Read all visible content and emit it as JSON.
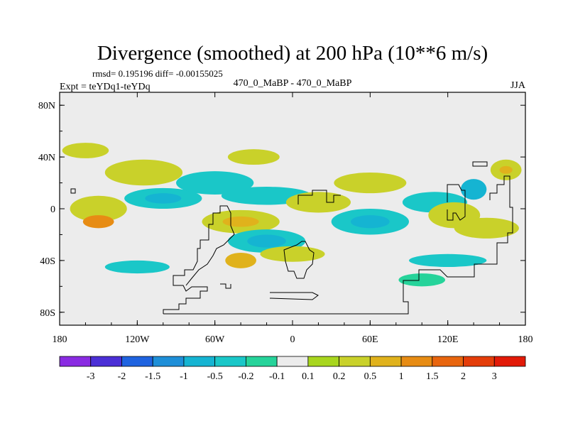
{
  "chart_data": {
    "type": "heatmap",
    "title": "Divergence (smoothed) at 200 hPa (10**6 m/s)",
    "stats": "rmsd= 0.195196 diff= -0.00155025",
    "experiment": "Expt = teYDq1-teYDq",
    "case_label": "470_0_MaBP - 470_0_MaBP",
    "season": "JJA",
    "x_ticks": [
      "180",
      "120W",
      "60W",
      "0",
      "60E",
      "120E",
      "180"
    ],
    "x_values": [
      -180,
      -120,
      -60,
      0,
      60,
      120,
      180
    ],
    "y_ticks": [
      "80N",
      "40N",
      "0",
      "40S",
      "80S"
    ],
    "y_values": [
      80,
      40,
      0,
      -40,
      -80
    ],
    "xlim": [
      -180,
      180
    ],
    "ylim": [
      -90,
      90
    ],
    "colorbar": {
      "labels": [
        "-3",
        "-2",
        "-1.5",
        "-1",
        "-0.5",
        "-0.2",
        "-0.1",
        "0.1",
        "0.2",
        "0.5",
        "1",
        "1.5",
        "2",
        "3"
      ],
      "colors": [
        "#8a2be2",
        "#4b2fd6",
        "#1f63e0",
        "#1e8fd8",
        "#15b4d2",
        "#1ac7c8",
        "#26d39a",
        "#ececec",
        "#a8d61e",
        "#c9d12a",
        "#e0b21c",
        "#e78c14",
        "#e8650e",
        "#e43d0a",
        "#e21a08"
      ]
    },
    "blobs": [
      {
        "lon": -150,
        "lat": 0,
        "rx": 22,
        "ry": 10,
        "level": "0.2"
      },
      {
        "lon": -150,
        "lat": -10,
        "rx": 12,
        "ry": 5,
        "level": "1"
      },
      {
        "lon": -100,
        "lat": 8,
        "rx": 30,
        "ry": 8,
        "level": "-0.2"
      },
      {
        "lon": -100,
        "lat": 8,
        "rx": 14,
        "ry": 4,
        "level": "-0.5"
      },
      {
        "lon": -115,
        "lat": 28,
        "rx": 30,
        "ry": 10,
        "level": "0.2"
      },
      {
        "lon": -60,
        "lat": 20,
        "rx": 30,
        "ry": 9,
        "level": "-0.2"
      },
      {
        "lon": -20,
        "lat": 10,
        "rx": 35,
        "ry": 7,
        "level": "-0.2"
      },
      {
        "lon": -40,
        "lat": -10,
        "rx": 30,
        "ry": 9,
        "level": "0.2"
      },
      {
        "lon": -40,
        "lat": -10,
        "rx": 14,
        "ry": 4,
        "level": "0.5"
      },
      {
        "lon": -20,
        "lat": -25,
        "rx": 30,
        "ry": 9,
        "level": "-0.2"
      },
      {
        "lon": -20,
        "lat": -25,
        "rx": 15,
        "ry": 5,
        "level": "-0.5"
      },
      {
        "lon": -40,
        "lat": -40,
        "rx": 12,
        "ry": 6,
        "level": "0.5"
      },
      {
        "lon": 20,
        "lat": 5,
        "rx": 25,
        "ry": 8,
        "level": "0.2"
      },
      {
        "lon": 60,
        "lat": -10,
        "rx": 30,
        "ry": 10,
        "level": "-0.2"
      },
      {
        "lon": 60,
        "lat": -10,
        "rx": 15,
        "ry": 5,
        "level": "-0.5"
      },
      {
        "lon": 60,
        "lat": 20,
        "rx": 28,
        "ry": 8,
        "level": "0.2"
      },
      {
        "lon": 110,
        "lat": 5,
        "rx": 25,
        "ry": 8,
        "level": "-0.2"
      },
      {
        "lon": 125,
        "lat": -5,
        "rx": 20,
        "ry": 10,
        "level": "0.2"
      },
      {
        "lon": 150,
        "lat": -15,
        "rx": 25,
        "ry": 8,
        "level": "0.2"
      },
      {
        "lon": 165,
        "lat": 30,
        "rx": 12,
        "ry": 8,
        "level": "0.2"
      },
      {
        "lon": 165,
        "lat": 30,
        "rx": 5,
        "ry": 3,
        "level": "0.5"
      },
      {
        "lon": 0,
        "lat": -35,
        "rx": 25,
        "ry": 6,
        "level": "0.2"
      },
      {
        "lon": 120,
        "lat": -40,
        "rx": 30,
        "ry": 5,
        "level": "-0.2"
      },
      {
        "lon": 100,
        "lat": -55,
        "rx": 18,
        "ry": 5,
        "level": "-0.1"
      },
      {
        "lon": -120,
        "lat": -45,
        "rx": 25,
        "ry": 5,
        "level": "-0.2"
      },
      {
        "lon": 140,
        "lat": 15,
        "rx": 10,
        "ry": 8,
        "level": "-0.5"
      },
      {
        "lon": -160,
        "lat": 45,
        "rx": 18,
        "ry": 6,
        "level": "0.2"
      },
      {
        "lon": -30,
        "lat": 40,
        "rx": 20,
        "ry": 6,
        "level": "0.2"
      }
    ]
  }
}
